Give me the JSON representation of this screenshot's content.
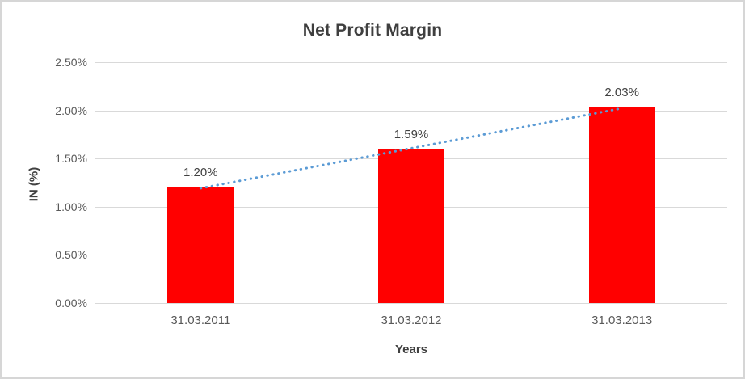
{
  "chart_data": {
    "type": "bar",
    "title": "Net Profit Margin",
    "categories": [
      "31.03.2011",
      "31.03.2012",
      "31.03.2013"
    ],
    "values": [
      1.2,
      1.59,
      2.03
    ],
    "data_labels": [
      "1.20%",
      "1.59%",
      "2.03%"
    ],
    "xlabel": "Years",
    "ylabel": "IN (%)",
    "y_ticks": [
      "2.50%",
      "2.00%",
      "1.50%",
      "1.00%",
      "0.50%",
      "0.00%"
    ],
    "ylim": [
      0,
      2.5
    ],
    "grid": true,
    "legend": "none",
    "bar_color": "#ff0000",
    "gridline_color": "#d9d9d9",
    "trendline": {
      "type": "linear",
      "style": "dotted",
      "color": "#5b9bd5"
    }
  }
}
